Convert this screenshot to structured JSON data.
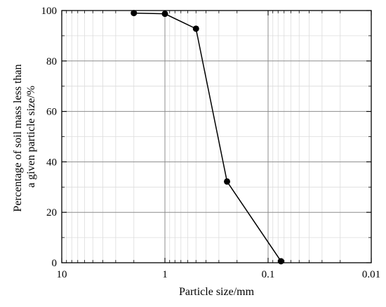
{
  "chart_data": {
    "type": "line",
    "title": "",
    "xlabel": "Particle size/mm",
    "ylabel_lines": [
      "Percentage of soil mass less than",
      "a given particle size/%"
    ],
    "x_scale": "log",
    "x_reversed": true,
    "xlim": [
      10,
      0.01
    ],
    "ylim": [
      0,
      100
    ],
    "x_ticks": [
      10,
      1,
      0.1,
      0.01
    ],
    "x_tick_labels": [
      "10",
      "1",
      "0.1",
      "0.01"
    ],
    "y_ticks": [
      0,
      20,
      40,
      60,
      80,
      100
    ],
    "y_tick_labels": [
      "0",
      "20",
      "40",
      "60",
      "80",
      "100"
    ],
    "grid": true,
    "minor_grid": true,
    "series": [
      {
        "x": [
          2,
          1,
          0.5,
          0.25,
          0.075
        ],
        "y": [
          99.0,
          98.7,
          92.8,
          32.2,
          0.6
        ],
        "marker": "circle",
        "color": "#000000"
      }
    ]
  }
}
